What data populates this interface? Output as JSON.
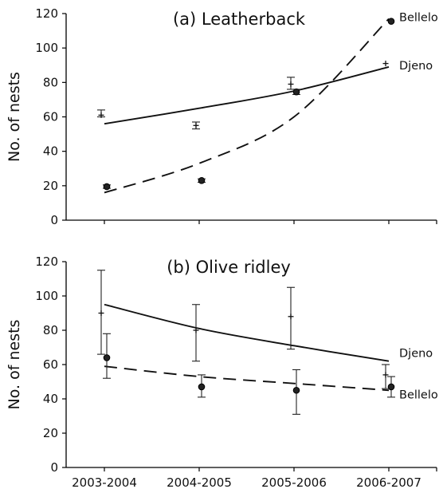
{
  "chart_data": [
    {
      "type": "scatter",
      "title": "(a) Leatherback",
      "ylabel": "No. of nests",
      "xlabel": "",
      "categories": [
        "2003-2004",
        "2004-2005",
        "2005-2006",
        "2006-2007"
      ],
      "ylim": [
        0,
        120
      ],
      "yticks": [
        0,
        20,
        40,
        60,
        80,
        100,
        120
      ],
      "x_tick_labels_shown": false,
      "grid": false,
      "legend": "inline labels at right",
      "series": [
        {
          "name": "Djeno",
          "marker": "cross",
          "observed": [
            61,
            55,
            79,
            91
          ],
          "error_low": [
            60,
            53,
            76,
            null
          ],
          "error_high": [
            64,
            57,
            83,
            null
          ],
          "fit_line": "solid",
          "fit": [
            56,
            65,
            75,
            89
          ]
        },
        {
          "name": "Bellelo",
          "marker": "filled-circle",
          "observed": [
            19.5,
            23,
            74.5,
            115.5
          ],
          "error_low": [
            18.5,
            22,
            73,
            null
          ],
          "error_high": [
            20.5,
            24,
            76,
            null
          ],
          "fit_line": "dashed",
          "fit": [
            16,
            33,
            60,
            117
          ]
        }
      ]
    },
    {
      "type": "scatter",
      "title": "(b) Olive ridley",
      "ylabel": "No. of nests",
      "xlabel": "",
      "categories": [
        "2003-2004",
        "2004-2005",
        "2005-2006",
        "2006-2007"
      ],
      "ylim": [
        0,
        120
      ],
      "yticks": [
        0,
        20,
        40,
        60,
        80,
        100,
        120
      ],
      "x_tick_labels_shown": true,
      "grid": false,
      "legend": "inline labels at right",
      "series": [
        {
          "name": "Djeno",
          "marker": "cross",
          "observed": [
            90,
            80,
            88,
            54
          ],
          "error_low": [
            66,
            62,
            69,
            46
          ],
          "error_high": [
            115,
            95,
            105,
            60
          ],
          "fit_line": "solid",
          "fit": [
            95,
            81,
            71,
            62
          ]
        },
        {
          "name": "Bellelo",
          "marker": "filled-circle",
          "observed": [
            64,
            47,
            45,
            47
          ],
          "error_low": [
            52,
            41,
            31,
            41
          ],
          "error_high": [
            78,
            54,
            57,
            53
          ],
          "fit_line": "dashed",
          "fit": [
            59,
            53,
            49,
            45
          ]
        }
      ]
    }
  ]
}
